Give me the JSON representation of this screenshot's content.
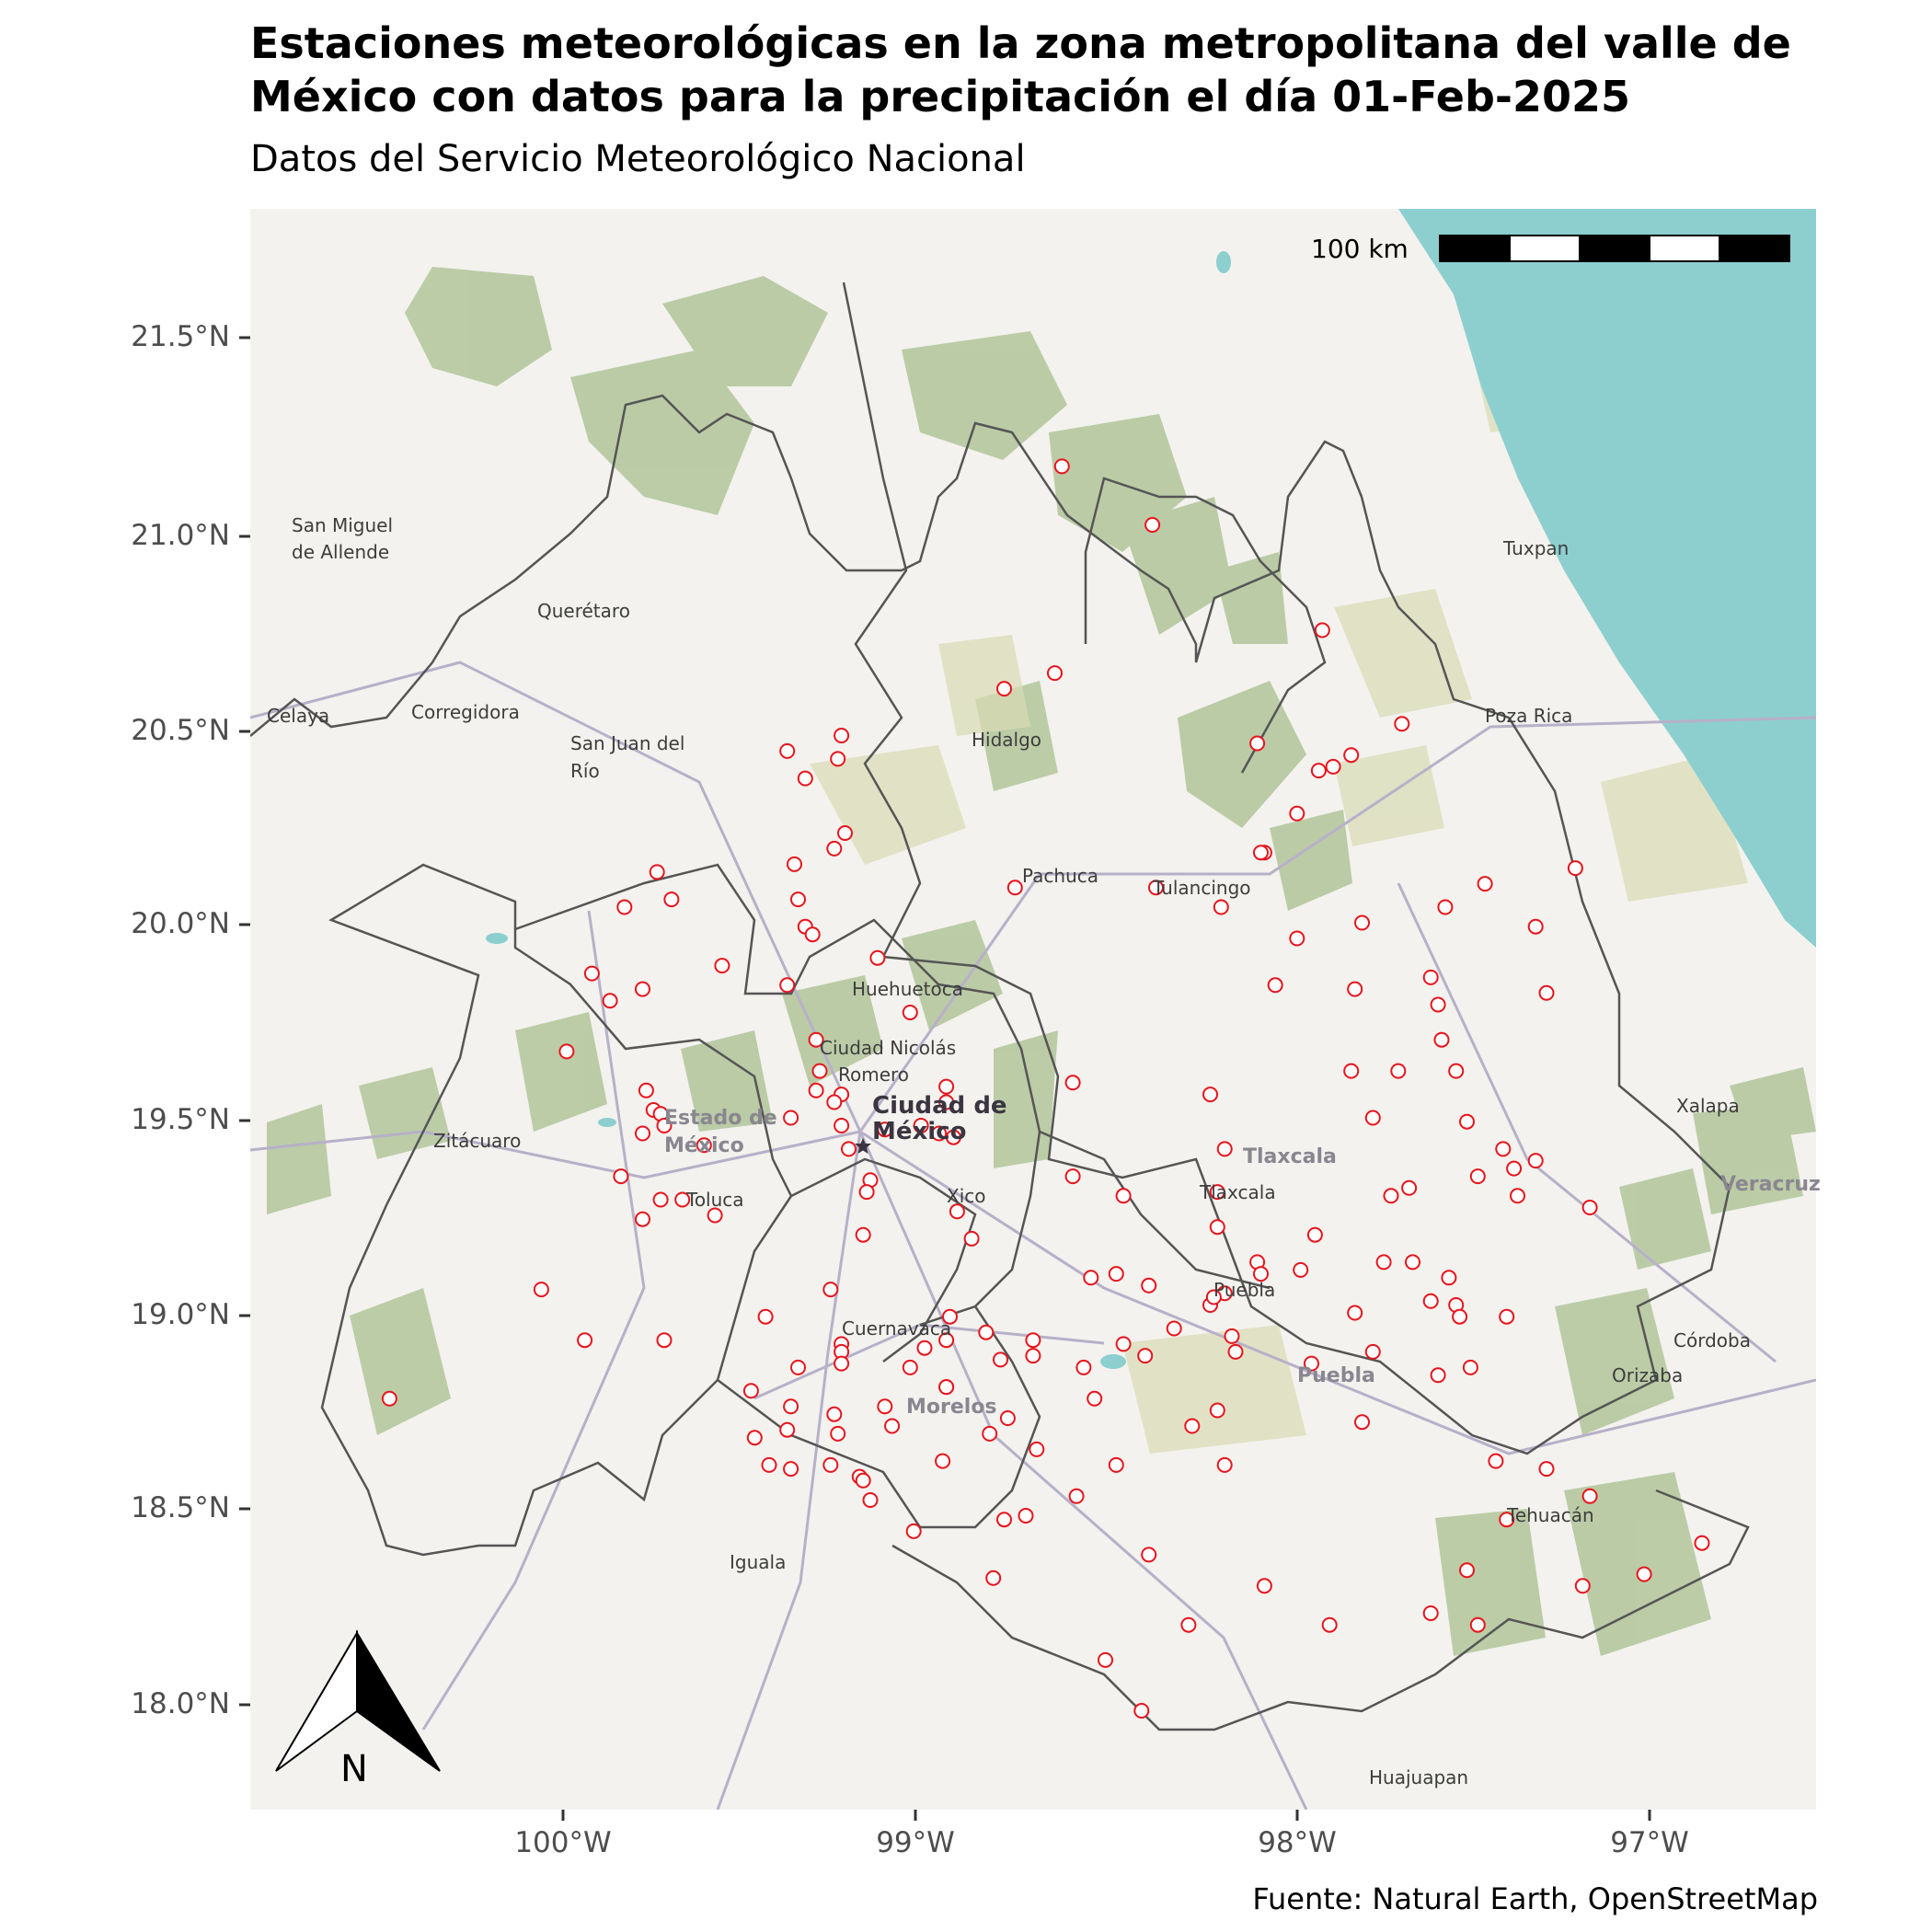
{
  "title_line1": "Estaciones meteorológicas en la zona metropolitana del valle de",
  "title_line2": "México con datos para la precipitación el día 01-Feb-2025",
  "subtitle": "Datos del Servicio Meteorológico Nacional",
  "caption": "Fuente: Natural Earth, OpenStreetMap",
  "scale_label": "100 km",
  "north_label": "N",
  "colors": {
    "station": "#e8141c",
    "water": "#8dcfcf",
    "forest": "#a9bf8f",
    "land": "#f3f2ee",
    "border": "#555555"
  },
  "axes": {
    "y_ticks": [
      "21.5°N",
      "21.0°N",
      "20.5°N",
      "20.0°N",
      "19.5°N",
      "19.0°N",
      "18.5°N",
      "18.0°N"
    ],
    "x_ticks": [
      "100°W",
      "99°W",
      "98°W",
      "97°W"
    ]
  },
  "places": [
    {
      "name": "San Miguel",
      "lon": -100.75,
      "lat": 21.02
    },
    {
      "name": "de Allende",
      "lon": -100.75,
      "lat": 20.95
    },
    {
      "name": "Querétaro",
      "lon": -100.07,
      "lat": 20.8
    },
    {
      "name": "Celaya",
      "lon": -100.82,
      "lat": 20.53
    },
    {
      "name": "Corregidora",
      "lon": -100.42,
      "lat": 20.54
    },
    {
      "name": "San Juan del",
      "lon": -99.98,
      "lat": 20.46
    },
    {
      "name": "Río",
      "lon": -99.98,
      "lat": 20.39
    },
    {
      "name": "Hidalgo",
      "lon": -98.87,
      "lat": 20.47
    },
    {
      "name": "Tuxpan",
      "lon": -97.4,
      "lat": 20.96
    },
    {
      "name": "Poza Rica",
      "lon": -97.45,
      "lat": 20.53
    },
    {
      "name": "Pachuca",
      "lon": -98.73,
      "lat": 20.12
    },
    {
      "name": "Tulancingo",
      "lon": -98.37,
      "lat": 20.09
    },
    {
      "name": "Huehuetoca",
      "lon": -99.2,
      "lat": 19.83
    },
    {
      "name": "Ciudad Nicolás",
      "lon": -99.29,
      "lat": 19.68
    },
    {
      "name": "Romero",
      "lon": -99.24,
      "lat": 19.61
    },
    {
      "name": "Xalapa",
      "lon": -96.92,
      "lat": 19.53
    },
    {
      "name": "Zitácuaro",
      "lon": -100.36,
      "lat": 19.44
    },
    {
      "name": "Toluca",
      "lon": -99.66,
      "lat": 19.29
    },
    {
      "name": "Xico",
      "lon": -98.94,
      "lat": 19.3
    },
    {
      "name": "Tlaxcala",
      "lon": -98.24,
      "lat": 19.31
    },
    {
      "name": "Puebla",
      "lon": -98.2,
      "lat": 19.06
    },
    {
      "name": "Córdoba",
      "lon": -96.93,
      "lat": 18.93
    },
    {
      "name": "Cuernavaca",
      "lon": -99.23,
      "lat": 18.96
    },
    {
      "name": "Orizaba",
      "lon": -97.1,
      "lat": 18.84
    },
    {
      "name": "Tehuacán",
      "lon": -97.39,
      "lat": 18.48
    },
    {
      "name": "Iguala",
      "lon": -99.54,
      "lat": 18.36
    },
    {
      "name": "Huajuapan",
      "lon": -97.77,
      "lat": 17.81
    }
  ],
  "regions": [
    {
      "name": "Estado de",
      "lon": -99.72,
      "lat": 19.5
    },
    {
      "name": "México",
      "lon": -99.72,
      "lat": 19.43
    },
    {
      "name": "Tlaxcala",
      "lon": -98.12,
      "lat": 19.4
    },
    {
      "name": "Morelos",
      "lon": -99.05,
      "lat": 18.76
    },
    {
      "name": "Puebla",
      "lon": -97.97,
      "lat": 18.84
    },
    {
      "name": "Veracruz",
      "lon": -96.8,
      "lat": 19.33
    }
  ],
  "capital": {
    "name_line1": "Ciudad de",
    "name_line2": "México",
    "lon": -99.13,
    "lat": 19.43
  },
  "stations": [
    [
      -98.62,
      21.17
    ],
    [
      -98.37,
      21.02
    ],
    [
      -97.9,
      20.75
    ],
    [
      -98.64,
      20.64
    ],
    [
      -98.78,
      20.6
    ],
    [
      -97.68,
      20.51
    ],
    [
      -99.38,
      20.44
    ],
    [
      -99.23,
      20.48
    ],
    [
      -99.24,
      20.42
    ],
    [
      -99.33,
      20.37
    ],
    [
      -98.08,
      20.46
    ],
    [
      -97.82,
      20.43
    ],
    [
      -97.91,
      20.39
    ],
    [
      -97.87,
      20.4
    ],
    [
      -99.22,
      20.23
    ],
    [
      -99.25,
      20.19
    ],
    [
      -99.36,
      20.15
    ],
    [
      -97.97,
      20.28
    ],
    [
      -98.06,
      20.18
    ],
    [
      -98.07,
      20.18
    ],
    [
      -97.2,
      20.14
    ],
    [
      -99.74,
      20.13
    ],
    [
      -99.7,
      20.06
    ],
    [
      -99.83,
      20.04
    ],
    [
      -98.75,
      20.09
    ],
    [
      -98.36,
      20.09
    ],
    [
      -98.18,
      20.04
    ],
    [
      -97.45,
      20.1
    ],
    [
      -97.56,
      20.04
    ],
    [
      -97.79,
      20.0
    ],
    [
      -97.31,
      19.99
    ],
    [
      -99.35,
      20.06
    ],
    [
      -99.33,
      19.99
    ],
    [
      -99.31,
      19.97
    ],
    [
      -97.97,
      19.96
    ],
    [
      -99.56,
      19.89
    ],
    [
      -99.13,
      19.91
    ],
    [
      -99.92,
      19.87
    ],
    [
      -99.78,
      19.83
    ],
    [
      -99.87,
      19.8
    ],
    [
      -99.38,
      19.84
    ],
    [
      -98.03,
      19.84
    ],
    [
      -97.81,
      19.83
    ],
    [
      -97.6,
      19.86
    ],
    [
      -97.28,
      19.82
    ],
    [
      -97.58,
      19.79
    ],
    [
      -99.04,
      19.77
    ],
    [
      -99.3,
      19.7
    ],
    [
      -97.57,
      19.7
    ],
    [
      -99.99,
      19.67
    ],
    [
      -99.29,
      19.62
    ],
    [
      -97.82,
      19.62
    ],
    [
      -97.69,
      19.62
    ],
    [
      -97.53,
      19.62
    ],
    [
      -98.59,
      19.59
    ],
    [
      -99.77,
      19.57
    ],
    [
      -99.3,
      19.57
    ],
    [
      -99.23,
      19.56
    ],
    [
      -98.94,
      19.58
    ],
    [
      -98.94,
      19.54
    ],
    [
      -99.25,
      19.54
    ],
    [
      -98.21,
      19.56
    ],
    [
      -99.75,
      19.52
    ],
    [
      -99.73,
      19.51
    ],
    [
      -99.37,
      19.5
    ],
    [
      -99.72,
      19.48
    ],
    [
      -99.78,
      19.46
    ],
    [
      -99.11,
      19.47
    ],
    [
      -99.01,
      19.48
    ],
    [
      -99.23,
      19.48
    ],
    [
      -98.96,
      19.46
    ],
    [
      -98.92,
      19.45
    ],
    [
      -97.76,
      19.5
    ],
    [
      -97.5,
      19.49
    ],
    [
      -99.61,
      19.43
    ],
    [
      -99.21,
      19.42
    ],
    [
      -98.17,
      19.42
    ],
    [
      -97.4,
      19.42
    ],
    [
      -97.31,
      19.39
    ],
    [
      -97.37,
      19.37
    ],
    [
      -98.59,
      19.35
    ],
    [
      -97.47,
      19.35
    ],
    [
      -97.66,
      19.32
    ],
    [
      -99.84,
      19.35
    ],
    [
      -98.45,
      19.3
    ],
    [
      -98.19,
      19.31
    ],
    [
      -97.71,
      19.3
    ],
    [
      -97.36,
      19.3
    ],
    [
      -99.15,
      19.34
    ],
    [
      -99.16,
      19.31
    ],
    [
      -99.73,
      19.29
    ],
    [
      -99.67,
      19.29
    ],
    [
      -97.16,
      19.27
    ],
    [
      -98.91,
      19.26
    ],
    [
      -99.58,
      19.25
    ],
    [
      -99.78,
      19.24
    ],
    [
      -98.19,
      19.22
    ],
    [
      -97.92,
      19.2
    ],
    [
      -99.17,
      19.2
    ],
    [
      -98.87,
      19.19
    ],
    [
      -98.54,
      19.09
    ],
    [
      -98.47,
      19.1
    ],
    [
      -98.08,
      19.13
    ],
    [
      -98.07,
      19.1
    ],
    [
      -97.96,
      19.11
    ],
    [
      -97.73,
      19.13
    ],
    [
      -97.65,
      19.13
    ],
    [
      -97.55,
      19.09
    ],
    [
      -100.06,
      19.06
    ],
    [
      -99.26,
      19.06
    ],
    [
      -98.38,
      19.07
    ],
    [
      -98.17,
      19.05
    ],
    [
      -98.21,
      19.02
    ],
    [
      -98.2,
      19.04
    ],
    [
      -97.6,
      19.03
    ],
    [
      -97.53,
      19.02
    ],
    [
      -97.52,
      18.99
    ],
    [
      -97.39,
      18.99
    ],
    [
      -99.44,
      18.99
    ],
    [
      -98.93,
      18.99
    ],
    [
      -97.81,
      19.0
    ],
    [
      -99.94,
      18.93
    ],
    [
      -99.72,
      18.93
    ],
    [
      -99.23,
      18.92
    ],
    [
      -98.94,
      18.93
    ],
    [
      -98.83,
      18.95
    ],
    [
      -98.7,
      18.93
    ],
    [
      -98.15,
      18.94
    ],
    [
      -98.31,
      18.96
    ],
    [
      -98.14,
      18.9
    ],
    [
      -98.45,
      18.92
    ],
    [
      -98.39,
      18.89
    ],
    [
      -99.0,
      18.91
    ],
    [
      -98.94,
      18.81
    ],
    [
      -99.23,
      18.9
    ],
    [
      -99.23,
      18.87
    ],
    [
      -98.79,
      18.88
    ],
    [
      -98.7,
      18.89
    ],
    [
      -98.56,
      18.86
    ],
    [
      -97.76,
      18.9
    ],
    [
      -97.93,
      18.87
    ],
    [
      -97.58,
      18.84
    ],
    [
      -97.49,
      18.86
    ],
    [
      -99.35,
      18.86
    ],
    [
      -99.04,
      18.86
    ],
    [
      -98.94,
      18.81
    ],
    [
      -99.48,
      18.8
    ],
    [
      -98.53,
      18.78
    ],
    [
      -99.37,
      18.76
    ],
    [
      -99.11,
      18.76
    ],
    [
      -98.19,
      18.75
    ],
    [
      -99.25,
      18.74
    ],
    [
      -98.77,
      18.73
    ],
    [
      -97.79,
      18.72
    ],
    [
      -99.09,
      18.71
    ],
    [
      -99.38,
      18.7
    ],
    [
      -98.26,
      18.71
    ],
    [
      -99.47,
      18.68
    ],
    [
      -99.24,
      18.69
    ],
    [
      -98.82,
      18.69
    ],
    [
      -98.69,
      18.65
    ],
    [
      -99.43,
      18.61
    ],
    [
      -99.37,
      18.6
    ],
    [
      -99.26,
      18.61
    ],
    [
      -98.95,
      18.62
    ],
    [
      -98.47,
      18.61
    ],
    [
      -98.17,
      18.61
    ],
    [
      -97.42,
      18.62
    ],
    [
      -97.28,
      18.6
    ],
    [
      -99.18,
      18.58
    ],
    [
      -99.17,
      18.57
    ],
    [
      -99.15,
      18.52
    ],
    [
      -98.58,
      18.53
    ],
    [
      -97.16,
      18.53
    ],
    [
      -98.78,
      18.47
    ],
    [
      -98.72,
      18.48
    ],
    [
      -97.39,
      18.47
    ],
    [
      -99.03,
      18.44
    ],
    [
      -96.85,
      18.41
    ],
    [
      -98.38,
      18.38
    ],
    [
      -97.5,
      18.34
    ],
    [
      -97.01,
      18.33
    ],
    [
      -98.81,
      18.32
    ],
    [
      -98.06,
      18.3
    ],
    [
      -97.18,
      18.3
    ],
    [
      -97.6,
      18.23
    ],
    [
      -98.27,
      18.2
    ],
    [
      -97.88,
      18.2
    ],
    [
      -97.47,
      18.2
    ],
    [
      -98.5,
      18.11
    ],
    [
      -100.48,
      18.78
    ],
    [
      -98.4,
      17.98
    ]
  ]
}
